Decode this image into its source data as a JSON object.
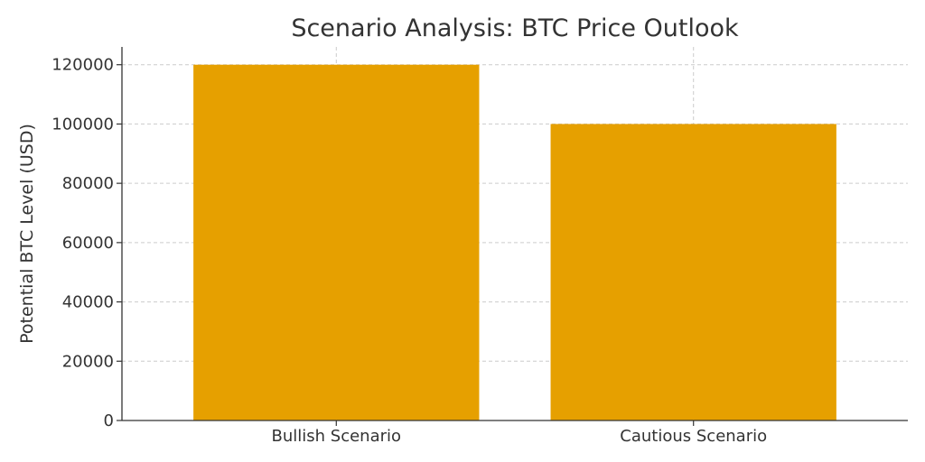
{
  "chart_data": {
    "type": "bar",
    "title": "Scenario Analysis: BTC Price Outlook",
    "xlabel": "",
    "ylabel": "Potential BTC Level (USD)",
    "categories": [
      "Bullish Scenario",
      "Cautious Scenario"
    ],
    "values": [
      120000,
      100000
    ],
    "ylim": [
      0,
      126000
    ],
    "yticks": [
      0,
      20000,
      40000,
      60000,
      80000,
      100000,
      120000
    ],
    "grid": true,
    "bar_color": "#E6A000",
    "legend": "none"
  }
}
